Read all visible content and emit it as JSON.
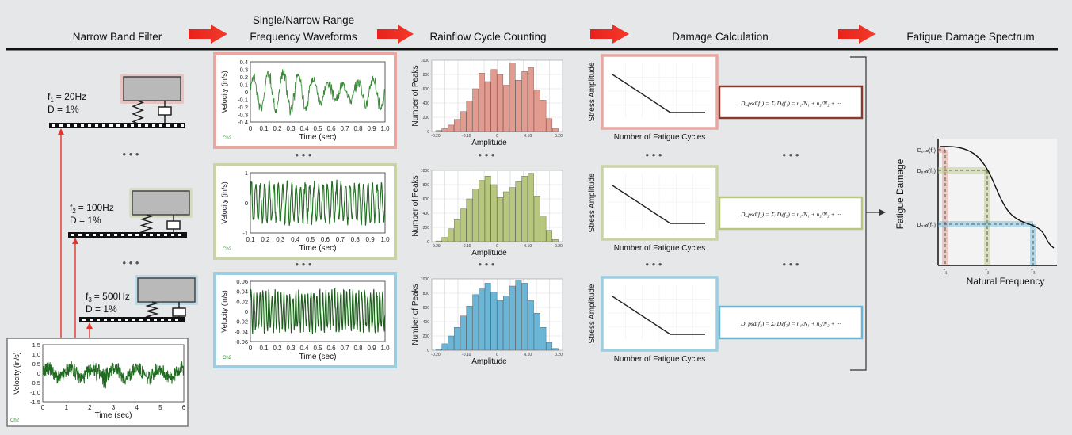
{
  "headers": {
    "step1": "Narrow Band Filter",
    "step2_line1": "Single/Narrow Range",
    "step2_line2": "Frequency Waveforms",
    "step3": "Rainflow Cycle Counting",
    "step4": "Damage Calculation",
    "step5": "Fatigue Damage Spectrum"
  },
  "filters": [
    {
      "f_sym": "f",
      "f_sub": "1",
      "f_val": "= 20Hz",
      "damping": "D = 1%",
      "color": "#e8a7a0"
    },
    {
      "f_sym": "f",
      "f_sub": "2",
      "f_val": "= 100Hz",
      "damping": "D = 1%",
      "color": "#c9d3a5"
    },
    {
      "f_sym": "f",
      "f_sub": "3",
      "f_val": "= 500Hz",
      "damping": "D = 1%",
      "color": "#9ccde0"
    }
  ],
  "ellipsis": "• • •",
  "waveform_common": {
    "ylabel": "Velocity (in/s)",
    "xlabel": "Time (sec)",
    "channel": "Ch2"
  },
  "waveforms": [
    {
      "border": "#e8a7a0",
      "line": "#3a8a3a",
      "yticks": [
        "0.4",
        "0.3",
        "0.2",
        "0.1",
        "0",
        "-0.1",
        "-0.2",
        "-0.3",
        "-0.4"
      ],
      "xticks": [
        "0",
        "0.1",
        "0.2",
        "0.3",
        "0.4",
        "0.5",
        "0.6",
        "0.7",
        "0.8",
        "0.9",
        "1.0"
      ]
    },
    {
      "border": "#c9d3a5",
      "line": "#1f6b1f",
      "yticks": [
        "1",
        "",
        "",
        "",
        "0",
        "",
        "",
        "",
        "-1"
      ],
      "xticks": [
        "0.1",
        "0.2",
        "0.3",
        "0.4",
        "0.5",
        "0.6",
        "0.7",
        "0.8",
        "0.9",
        "1.0"
      ]
    },
    {
      "border": "#9ccde0",
      "line": "#1a5e1a",
      "yticks": [
        "0.06",
        "0.04",
        "0.02",
        "0",
        "-0.02",
        "-0.04",
        "-0.06"
      ],
      "xticks": [
        "0",
        "0.1",
        "0.2",
        "0.3",
        "0.4",
        "0.5",
        "0.6",
        "0.7",
        "0.8",
        "0.9",
        "1.0"
      ]
    }
  ],
  "raw_signal": {
    "ylabel": "Velocity (in/s)",
    "xlabel": "Time (sec)",
    "channel": "Ch2",
    "yticks": [
      "1.5",
      "1.0",
      "0.5",
      "0",
      "-0.5",
      "-1.0",
      "-1.5"
    ],
    "xticks": [
      "0",
      "1",
      "2",
      "3",
      "4",
      "5",
      "6"
    ]
  },
  "chart_data": [
    {
      "type": "bar",
      "title": "",
      "xlabel": "Amplitude",
      "ylabel": "Number of Peaks",
      "categories": [
        "-0.20",
        "-0.18",
        "-0.16",
        "-0.14",
        "-0.12",
        "-0.10",
        "-0.08",
        "-0.06",
        "-0.04",
        "-0.02",
        "0",
        "0.02",
        "0.04",
        "0.06",
        "0.08",
        "0.10",
        "0.12",
        "0.14",
        "0.16",
        "0.18"
      ],
      "values": [
        15,
        40,
        90,
        170,
        280,
        430,
        600,
        820,
        700,
        870,
        800,
        650,
        960,
        720,
        840,
        900,
        580,
        440,
        180,
        45
      ],
      "ylim": [
        0,
        1000
      ],
      "yticks": [
        "1000",
        "800",
        "600",
        "400",
        "200",
        "0"
      ],
      "xticks": [
        "-0.20",
        "-0.10",
        "0",
        "0.10",
        "0.20"
      ],
      "color": "#e39a8f"
    },
    {
      "type": "bar",
      "title": "",
      "xlabel": "Amplitude",
      "ylabel": "Number of Peaks",
      "categories": [
        "-0.20",
        "-0.18",
        "-0.16",
        "-0.14",
        "-0.12",
        "-0.10",
        "-0.08",
        "-0.06",
        "-0.04",
        "-0.02",
        "0",
        "0.02",
        "0.04",
        "0.06",
        "0.08",
        "0.10",
        "0.12",
        "0.14",
        "0.16",
        "0.18"
      ],
      "values": [
        10,
        60,
        180,
        310,
        460,
        600,
        740,
        860,
        920,
        800,
        620,
        700,
        760,
        840,
        920,
        960,
        640,
        360,
        160,
        30
      ],
      "ylim": [
        0,
        1000
      ],
      "yticks": [
        "1000",
        "800",
        "600",
        "400",
        "200",
        "0"
      ],
      "xticks": [
        "-0.20",
        "-0.10",
        "0",
        "0.10",
        "0.20"
      ],
      "color": "#b8c77e"
    },
    {
      "type": "bar",
      "title": "",
      "xlabel": "Amplitude",
      "ylabel": "Number of Peaks",
      "categories": [
        "-0.20",
        "-0.18",
        "-0.16",
        "-0.14",
        "-0.12",
        "-0.10",
        "-0.08",
        "-0.06",
        "-0.04",
        "-0.02",
        "0",
        "0.02",
        "0.04",
        "0.06",
        "0.08",
        "0.10",
        "0.12",
        "0.14",
        "0.16",
        "0.18"
      ],
      "values": [
        20,
        90,
        200,
        320,
        480,
        620,
        780,
        860,
        940,
        820,
        700,
        760,
        900,
        980,
        940,
        700,
        520,
        320,
        110,
        25
      ],
      "ylim": [
        0,
        1000
      ],
      "yticks": [
        "1000",
        "800",
        "600",
        "400",
        "200",
        "0"
      ],
      "xticks": [
        "-0.20",
        "-0.10",
        "0",
        "0.10",
        "0.20"
      ],
      "color": "#6bb6d6"
    }
  ],
  "sn_curve": {
    "ylabel": "Stress Amplitude",
    "xlabel": "Number of Fatigue Cycles"
  },
  "sn_borders": [
    "#e8a7a0",
    "#c9d3a5",
    "#9ccde0"
  ],
  "equations": [
    {
      "border": "#8b3a30",
      "text": "D_psd(f₁) = Σᵢ Dᵢ(f₁) = n₁/N₁ + n₂/N₂ + ···"
    },
    {
      "border": "#b8c77e",
      "text": "D_psd(f₂) = Σᵢ Dᵢ(f₂) = n₁/N₁ + n₂/N₂ + ···"
    },
    {
      "border": "#6bb6d6",
      "text": "D_psd(f₃) = Σᵢ Dᵢ(f₃) = n₁/N₁ + n₂/N₂ + ···"
    }
  ],
  "fds": {
    "ylabel": "Fatigue Damage",
    "xlabel": "Natural Frequency",
    "ylabels": [
      "Dₚₛ𝒹(f₁)",
      "Dₚₛ𝒹(f₂)",
      "Dₚₛ𝒹(f₃)"
    ],
    "xlabels": [
      "f₁",
      "f₂",
      "f₃"
    ],
    "colors": [
      "#e39a8f",
      "#b8c77e",
      "#6bb6d6"
    ]
  }
}
